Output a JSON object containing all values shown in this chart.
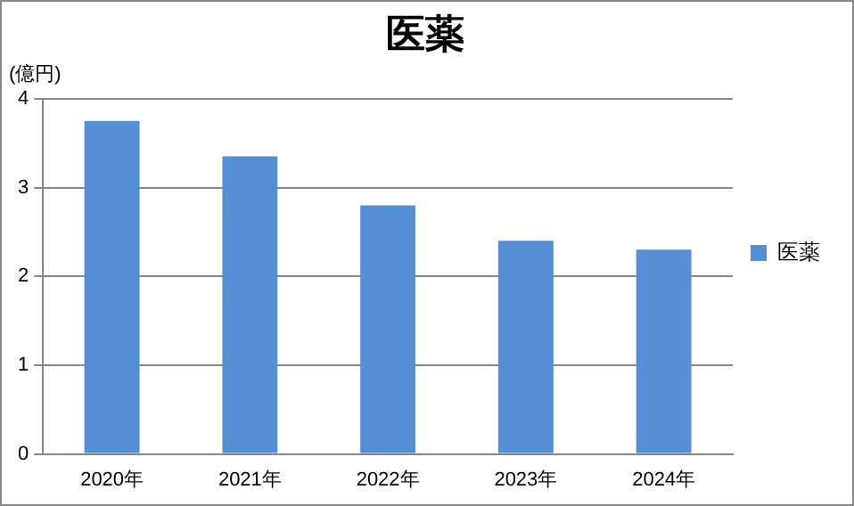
{
  "chart_data": {
    "type": "bar",
    "title": "医薬",
    "ylabel": "(億円)",
    "categories": [
      "2020年",
      "2021年",
      "2022年",
      "2023年",
      "2024年"
    ],
    "series": [
      {
        "name": "医薬",
        "color": "#558ed5",
        "values": [
          3.75,
          3.35,
          2.8,
          2.4,
          2.3
        ]
      }
    ],
    "ylim": [
      0,
      4
    ],
    "yticks": [
      0,
      1,
      2,
      3,
      4
    ],
    "grid": "y",
    "legend": "right"
  }
}
